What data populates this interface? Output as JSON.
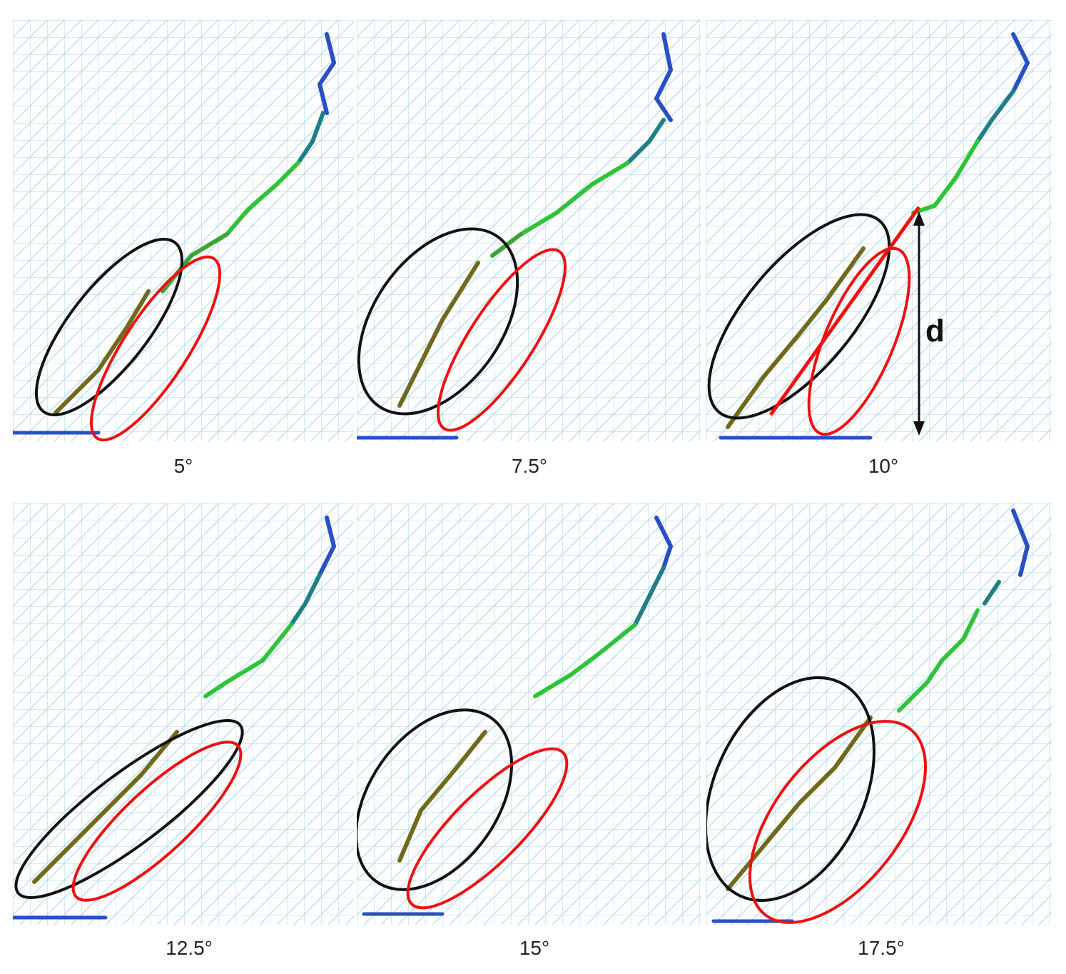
{
  "figure": {
    "panels": [
      {
        "id": "p1",
        "label": "5°"
      },
      {
        "id": "p2",
        "label": "7.5°"
      },
      {
        "id": "p3",
        "label": "10°",
        "annotation": "d"
      },
      {
        "id": "p4",
        "label": "12.5°"
      },
      {
        "id": "p5",
        "label": "15°"
      },
      {
        "id": "p6",
        "label": "17.5°"
      }
    ],
    "colors": {
      "mesh": "#a9d6ec",
      "ellipse_black": "#111111",
      "ellipse_red": "#ee1111",
      "crack_blue": "#2a4fc4",
      "crack_teal": "#1f7f86",
      "crack_green": "#2ec43a",
      "crack_olive": "#6f6a1c"
    }
  }
}
